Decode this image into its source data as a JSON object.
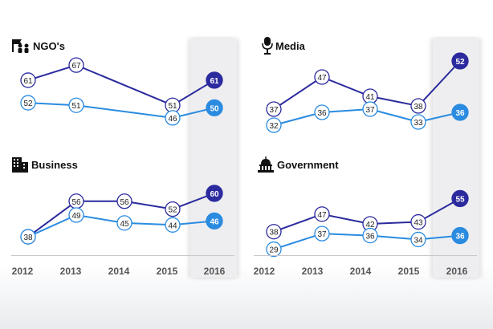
{
  "x_labels": [
    "2012",
    "2013",
    "2014",
    "2015",
    "2016"
  ],
  "colors": {
    "series_a": "#2b2a9e",
    "series_b": "#2a8be0",
    "label_text": "#222222"
  },
  "chart_data": [
    {
      "type": "line",
      "title": "NGO's",
      "icon": "people-icon",
      "categories": [
        "2012",
        "2013",
        "2014",
        "2015",
        "2016"
      ],
      "ylim": [
        45,
        68
      ],
      "series": [
        {
          "values": [
            61,
            67,
            null,
            51,
            61
          ]
        },
        {
          "values": [
            52,
            51,
            null,
            46,
            50
          ]
        }
      ]
    },
    {
      "type": "line",
      "title": "Media",
      "icon": "microphone-icon",
      "categories": [
        "2012",
        "2013",
        "2014",
        "2015",
        "2016"
      ],
      "ylim": [
        30,
        53
      ],
      "series": [
        {
          "values": [
            37,
            47,
            41,
            38,
            52
          ]
        },
        {
          "values": [
            32,
            36,
            37,
            33,
            36
          ]
        }
      ]
    },
    {
      "type": "line",
      "title": "Business",
      "icon": "building-icon",
      "categories": [
        "2012",
        "2013",
        "2014",
        "2015",
        "2016"
      ],
      "ylim": [
        36,
        62
      ],
      "series": [
        {
          "values": [
            38,
            56,
            56,
            52,
            60
          ]
        },
        {
          "values": [
            38,
            49,
            45,
            44,
            46
          ]
        }
      ]
    },
    {
      "type": "line",
      "title": "Government",
      "icon": "capitol-icon",
      "categories": [
        "2012",
        "2013",
        "2014",
        "2015",
        "2016"
      ],
      "ylim": [
        28,
        56
      ],
      "series": [
        {
          "values": [
            38,
            47,
            42,
            43,
            55
          ]
        },
        {
          "values": [
            29,
            37,
            36,
            34,
            36
          ]
        }
      ]
    }
  ]
}
